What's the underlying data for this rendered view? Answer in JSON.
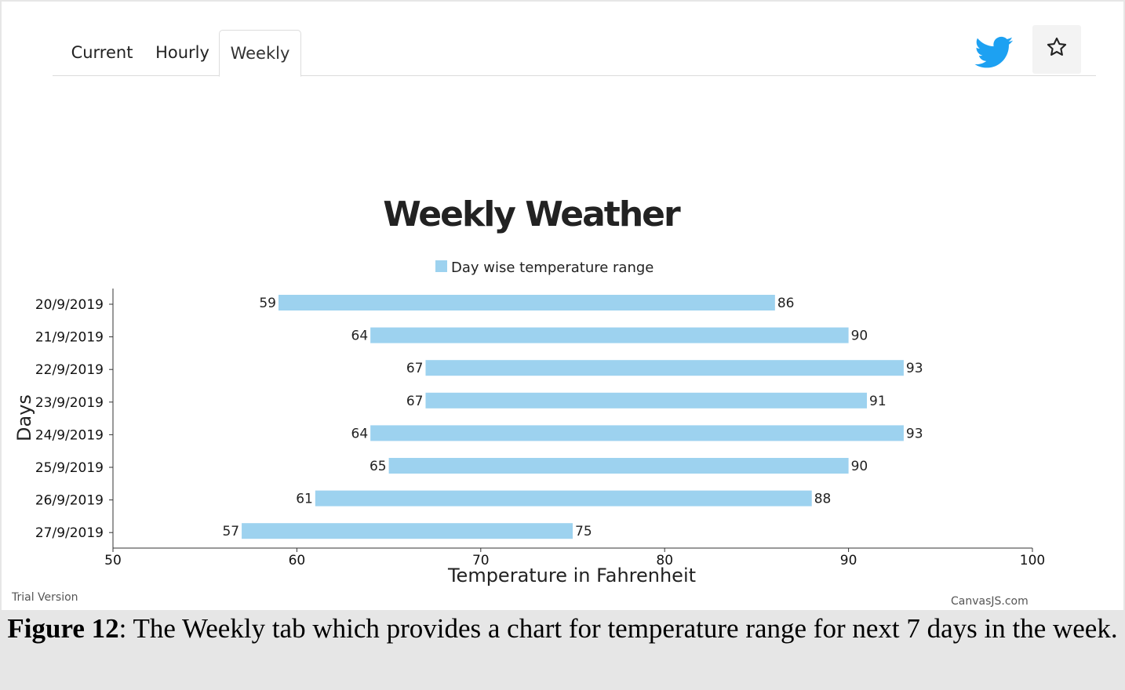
{
  "tabs": [
    {
      "label": "Current"
    },
    {
      "label": "Hourly"
    },
    {
      "label": "Weekly",
      "active": true
    }
  ],
  "icons": {
    "twitter": "twitter-icon",
    "star": "star-icon"
  },
  "colors": {
    "bar": "#9dd2ef",
    "twitter": "#1da1f2"
  },
  "chart_data": {
    "type": "bar",
    "orientation": "horizontal-range",
    "title": "Weekly Weather",
    "legend": "Day wise temperature range",
    "legend_position": "top",
    "xlabel": "Temperature in Fahrenheit",
    "ylabel": "Days",
    "xlim": [
      50,
      100
    ],
    "x_ticks": [
      50,
      60,
      70,
      80,
      90,
      100
    ],
    "categories": [
      "20/9/2019",
      "21/9/2019",
      "22/9/2019",
      "23/9/2019",
      "24/9/2019",
      "25/9/2019",
      "26/9/2019",
      "27/9/2019"
    ],
    "series": [
      {
        "name": "Day wise temperature range",
        "low": [
          59,
          64,
          67,
          67,
          64,
          65,
          61,
          57
        ],
        "high": [
          86,
          90,
          93,
          91,
          93,
          90,
          88,
          75
        ]
      }
    ],
    "grid": false
  },
  "footer": {
    "trial": "Trial Version",
    "credit": "CanvasJS.com"
  },
  "caption": {
    "bold": "Figure 12",
    "text": ": The Weekly tab which provides a chart for temperature range for next 7 days in the week."
  }
}
